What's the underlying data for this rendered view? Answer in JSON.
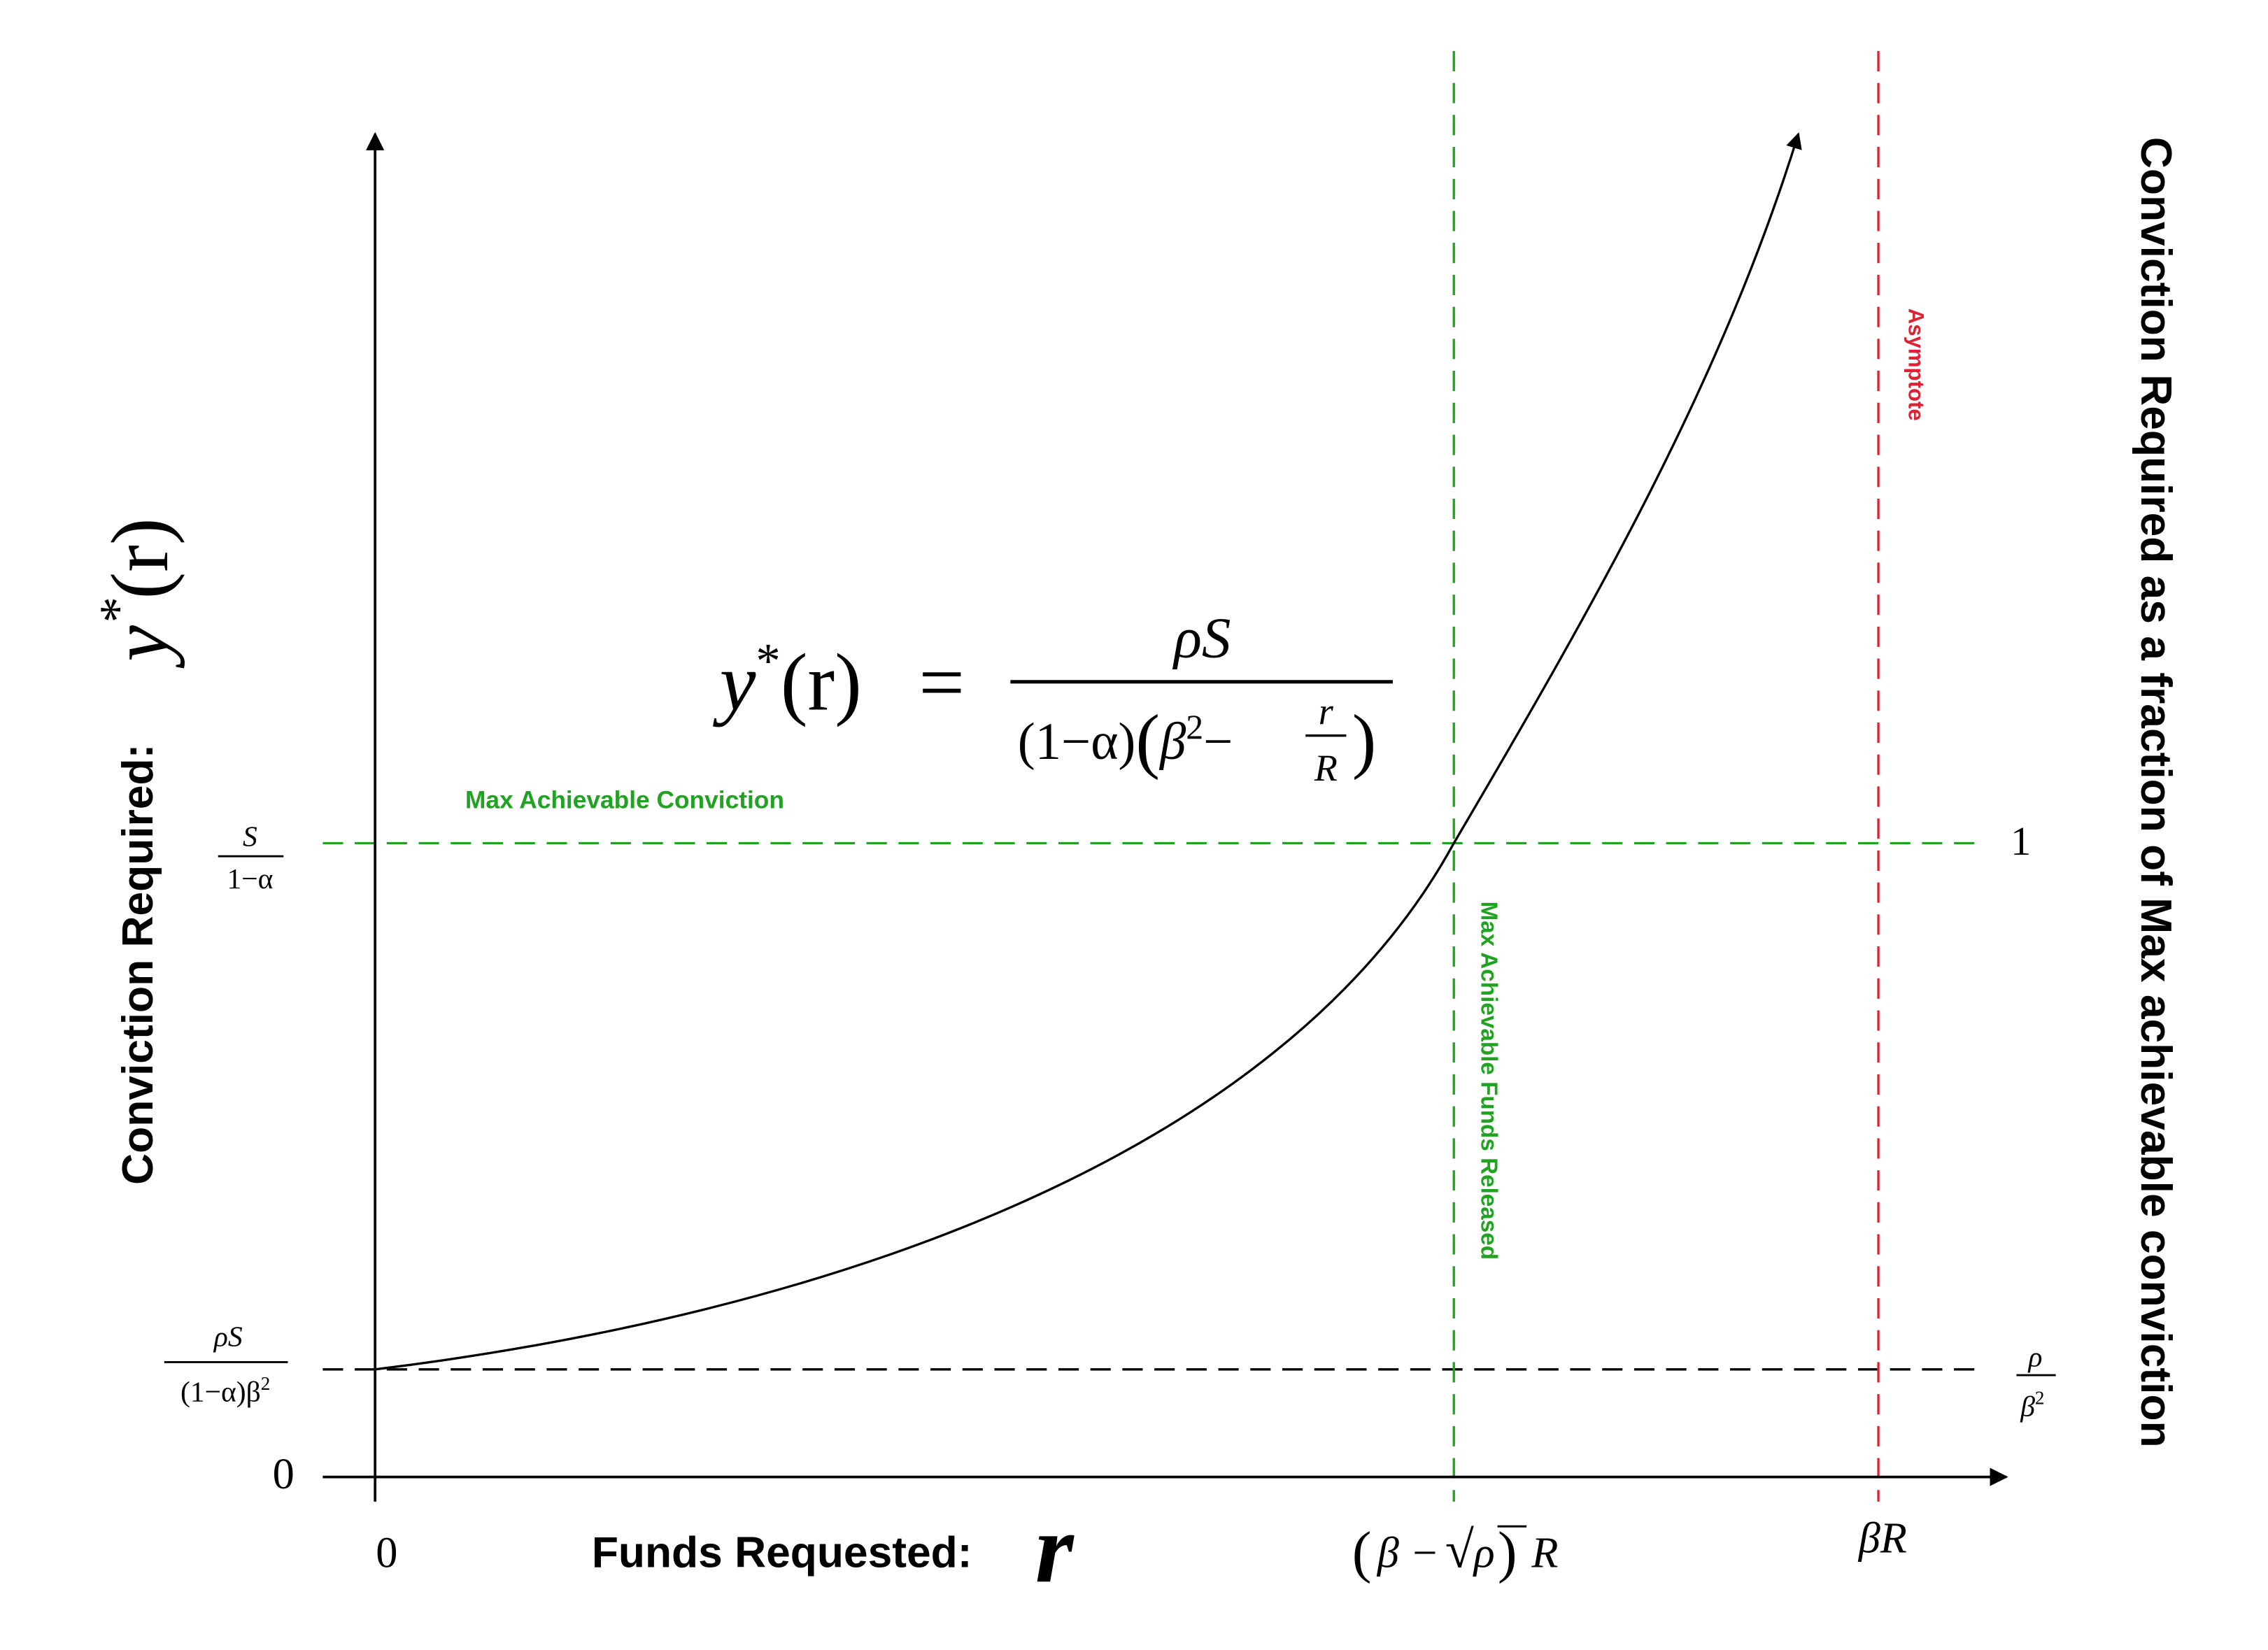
{
  "left_axis": {
    "title": "Conviction Required:",
    "symbol": {
      "base": "y",
      "sup": "*",
      "arg": "(r)"
    }
  },
  "right_axis": {
    "title": "Conviction Required as a fraction of Max achievable conviction"
  },
  "formula": {
    "lhs": {
      "base": "y",
      "sup": "*",
      "arg": "(r)"
    },
    "equals": "=",
    "numerator": "ρS",
    "denominator": {
      "prefix": "(1−α)",
      "open": "(",
      "beta": "β",
      "sup": "2",
      "minus": "−",
      "frac_num": "r",
      "frac_den": "R",
      "close": ")"
    }
  },
  "annotations": {
    "max_conviction": "Max Achievable Conviction",
    "max_funds": "Max Achievable Funds Released",
    "asymptote": "Asymptote"
  },
  "left_ticks": {
    "zero": "0",
    "baseline": {
      "num": "ρS",
      "den": "(1−α)β",
      "den_sup": "2"
    },
    "max": {
      "num": "S",
      "den": "1−α"
    }
  },
  "right_ticks": {
    "one": "1",
    "baseline": {
      "num": "ρ",
      "den": "β",
      "den_sup": "2"
    }
  },
  "x_axis": {
    "title": "Funds Requested:",
    "symbol": "r",
    "zero": "0",
    "max_funds": {
      "open": "(",
      "beta": "β −",
      "radical": "√",
      "radicand": "ρ",
      "close": ")",
      "factor": "R"
    },
    "asymptote": "βR"
  }
}
